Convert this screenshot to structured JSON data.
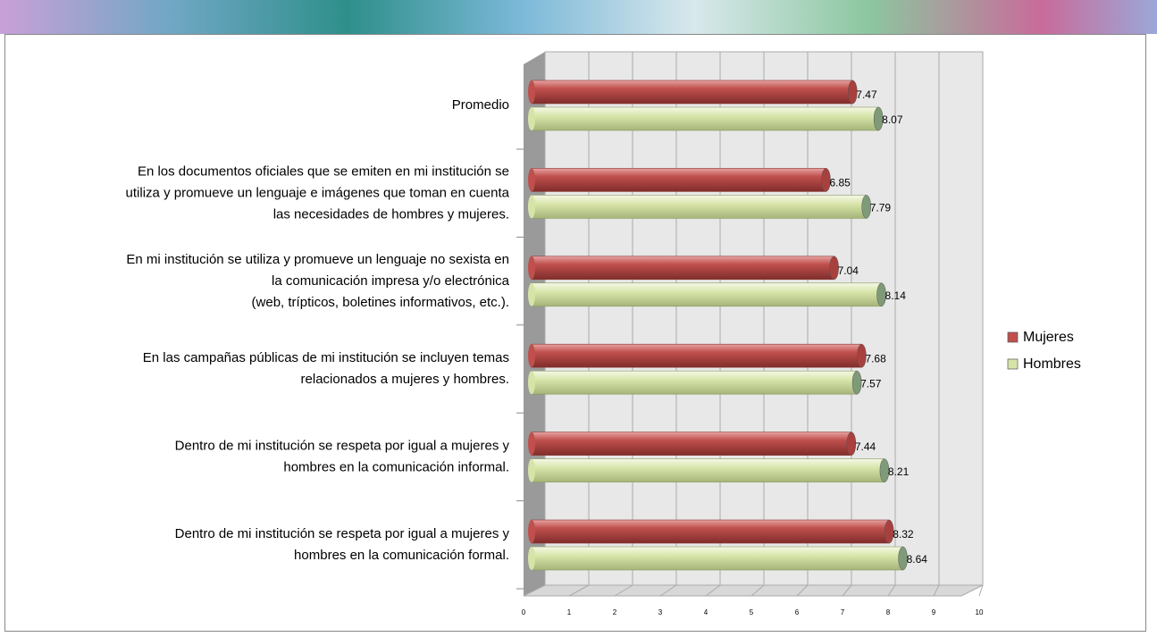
{
  "chart_data": {
    "type": "bar",
    "orientation": "horizontal",
    "categories": [
      "Promedio",
      "En los documentos oficiales que se emiten en mi institución se\nutiliza y promueve un lenguaje e imágenes que toman en cuenta\nlas necesidades de hombres y mujeres.",
      "En mi institución se utiliza y promueve un lenguaje no sexista en\nla comunicación impresa y/o electrónica\n(web, trípticos, boletines informativos, etc.).",
      "En las campañas públicas de mi institución se incluyen temas\nrelacionados a mujeres y hombres.",
      "Dentro de mi institución se respeta por igual a mujeres y\nhombres en la comunicación informal.",
      "Dentro de mi institución se respeta por igual a mujeres y\nhombres en la comunicación formal."
    ],
    "series": [
      {
        "name": "Mujeres",
        "color": "#c0504d",
        "values": [
          7.47,
          6.85,
          7.04,
          7.68,
          7.44,
          8.32
        ]
      },
      {
        "name": "Hombres",
        "color": "#d7e4a8",
        "values": [
          8.07,
          7.79,
          8.14,
          7.57,
          8.21,
          8.64
        ]
      }
    ],
    "xlim": [
      0,
      10
    ],
    "xticks": [
      0,
      1,
      2,
      3,
      4,
      5,
      6,
      7,
      8,
      9,
      10
    ],
    "grid": true,
    "legend": "right"
  }
}
